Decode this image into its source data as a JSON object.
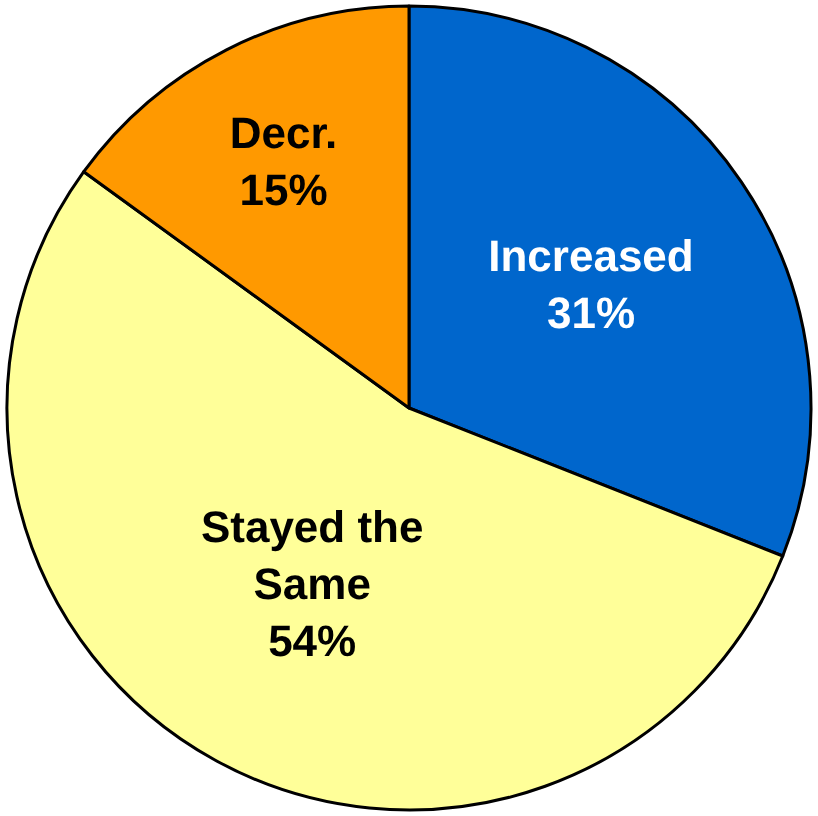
{
  "chart_data": {
    "type": "pie",
    "categories": [
      "Increased",
      "Stayed the Same",
      "Decr."
    ],
    "values": [
      31,
      54,
      15
    ],
    "value_labels": [
      "31%",
      "54%",
      "15%"
    ],
    "colors": [
      "#0066cc",
      "#ffff99",
      "#ff9900"
    ],
    "legend": false
  }
}
